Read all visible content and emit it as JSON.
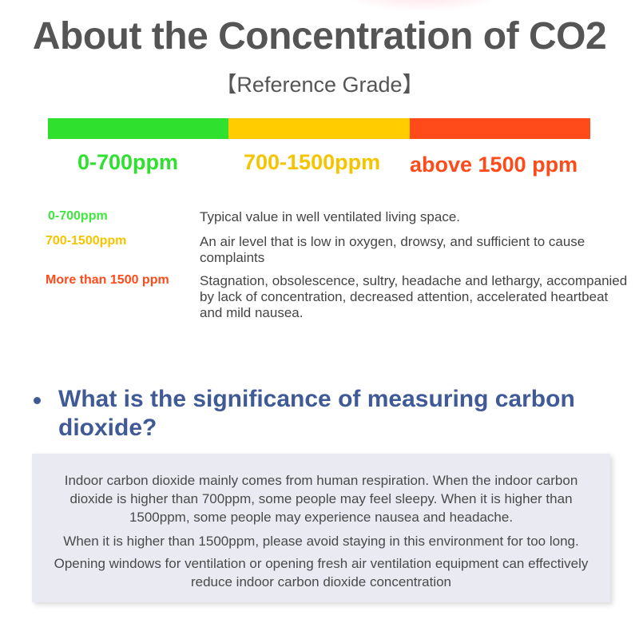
{
  "title": "About the Concentration of CO2",
  "subtitle": "【Reference Grade】",
  "scale": {
    "segments": [
      {
        "label": "0-700ppm",
        "color": "#2fe02f"
      },
      {
        "label": "700-1500ppm",
        "color": "#ffcc00"
      },
      {
        "label": "above 1500 ppm",
        "color": "#ff4a1a"
      }
    ]
  },
  "levels": [
    {
      "label": "0-700ppm",
      "description": "Typical value in well ventilated living space.",
      "color": "#3ee83e"
    },
    {
      "label": "700-1500ppm",
      "description": "An air level that is low in oxygen, drowsy, and sufficient to cause complaints",
      "color": "#f5c400"
    },
    {
      "label": "More than 1500 ppm",
      "description": "Stagnation, obsolescence, sultry, headache and lethargy, accompanied by lack of concentration, decreased attention, accelerated heartbeat and mild nausea.",
      "color": "#ff4a1a"
    }
  ],
  "section": {
    "heading": "What is the significance of measuring carbon dioxide?",
    "heading_color": "#3f5a96",
    "paragraphs": [
      "Indoor carbon dioxide mainly comes from human respiration. When the indoor carbon dioxide is higher than 700ppm, some people may feel sleepy. When it is higher than 1500ppm, some people may experience nausea and headache.",
      "When it is higher than 1500ppm, please avoid staying in this environment for too long.",
      "Opening windows for ventilation or opening fresh air ventilation equipment can effectively reduce indoor carbon dioxide concentration"
    ]
  }
}
